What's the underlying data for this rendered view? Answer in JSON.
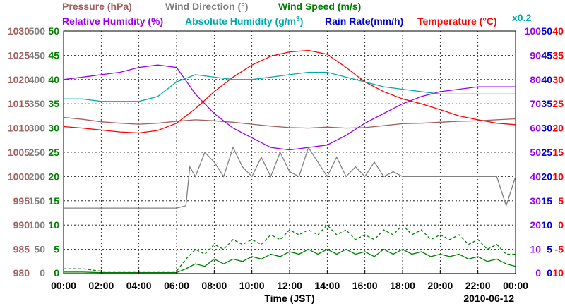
{
  "chart_data": {
    "type": "line",
    "date": "2010-06-12",
    "xlabel": "Time (JST)",
    "x_ticks": [
      "00:00",
      "02:00",
      "04:00",
      "06:00",
      "08:00",
      "10:00",
      "12:00",
      "14:00",
      "16:00",
      "18:00",
      "20:00",
      "22:00",
      "00:00"
    ],
    "grid": true,
    "legend": [
      {
        "text": "Pressure (hPa)",
        "color": "#a0605f"
      },
      {
        "text": "Wind Direction (°)",
        "color": "#808080"
      },
      {
        "text": "Wind Speed (m/s)",
        "color": "#008000"
      },
      {
        "text": "Relative Humidity (%)",
        "color": "#9900ee"
      },
      {
        "text": "Absolute Humidity (g/m",
        "sup": "3",
        "tail": ")",
        "color": "#00aaaa"
      },
      {
        "text": "Rain Rate(mm/h)",
        "color": "#0000cc"
      },
      {
        "text": "Temperature (°C)",
        "color": "#ff0000"
      },
      {
        "text": "x0.2",
        "color": "#00aaaa"
      }
    ],
    "axes": [
      {
        "name": "Pressure (hPa)",
        "color": "#a0605f",
        "ticks": [
          "1030",
          "1025",
          "1020",
          "1015",
          "1010",
          "1005",
          "1000",
          "995",
          "990",
          "985",
          "980"
        ]
      },
      {
        "name": "Wind Direction (°)",
        "color": "#808080",
        "ticks": [
          "500",
          "450",
          "400",
          "350",
          "300",
          "250",
          "200",
          "150",
          "100",
          "50",
          "0"
        ]
      },
      {
        "name": "Wind Speed (m/s)",
        "color": "#008000",
        "ticks": [
          "50",
          "45",
          "40",
          "35",
          "30",
          "25",
          "20",
          "15",
          "10",
          "5",
          "0"
        ]
      },
      {
        "name": "Relative Humidity (%)",
        "color": "#9900ee",
        "ticks": [
          "100",
          "90",
          "80",
          "70",
          "60",
          "50",
          "40",
          "30",
          "20",
          "10",
          "0"
        ]
      },
      {
        "name": "Rain Rate(mm/h)",
        "color": "#0000cc",
        "ticks": [
          "50",
          "45",
          "40",
          "35",
          "30",
          "25",
          "20",
          "15",
          "10",
          "5",
          "0"
        ]
      },
      {
        "name": "Temperature (°C)",
        "color": "#ff0000",
        "ticks": [
          "40",
          "35",
          "30",
          "25",
          "20",
          "15",
          "10",
          "5",
          "0",
          "-5",
          "-10"
        ]
      }
    ],
    "series": [
      {
        "name": "Pressure (hPa)",
        "color": "#a0605f",
        "ylim": [
          980,
          1030
        ],
        "x": [
          0,
          1,
          2,
          3,
          4,
          5,
          6,
          7,
          8,
          9,
          10,
          11,
          12,
          13,
          14,
          15,
          16,
          17,
          18,
          19,
          20,
          21,
          22,
          23,
          24
        ],
        "y": [
          1012.2,
          1011.8,
          1011.3,
          1011.0,
          1010.8,
          1011.0,
          1011.4,
          1011.7,
          1011.5,
          1011.2,
          1010.8,
          1010.4,
          1010.1,
          1010.0,
          1010.2,
          1010.0,
          1010.1,
          1010.5,
          1010.9,
          1011.0,
          1011.2,
          1011.4,
          1011.5,
          1011.7,
          1011.9
        ]
      },
      {
        "name": "Temperature (°C)",
        "color": "#ff0000",
        "ylim": [
          -10,
          40
        ],
        "x": [
          0,
          1,
          2,
          3,
          4,
          5,
          6,
          7,
          8,
          9,
          10,
          11,
          12,
          13,
          14,
          15,
          16,
          17,
          18,
          19,
          20,
          21,
          22,
          23,
          24
        ],
        "y": [
          20.3,
          20.0,
          19.6,
          19.2,
          19.0,
          19.5,
          21.0,
          24.0,
          27.5,
          30.5,
          33.0,
          34.8,
          35.7,
          36.0,
          35.2,
          32.5,
          29.5,
          27.5,
          26.0,
          25.0,
          23.8,
          22.5,
          21.7,
          21.0,
          20.7
        ]
      },
      {
        "name": "Relative Humidity (%)",
        "color": "#9900ee",
        "ylim": [
          0,
          100
        ],
        "x": [
          0,
          1,
          2,
          3,
          4,
          5,
          6,
          7,
          8,
          9,
          10,
          11,
          12,
          13,
          14,
          15,
          16,
          17,
          18,
          19,
          20,
          21,
          22,
          23,
          24
        ],
        "y": [
          80,
          81,
          82,
          83,
          85,
          86,
          85,
          74,
          66,
          60,
          56,
          52,
          51,
          52,
          53,
          57,
          62,
          66,
          70,
          73,
          75,
          76,
          77,
          77,
          77
        ]
      },
      {
        "name": "Absolute Humidity (g/m3)",
        "color": "#00aaaa",
        "ylim": [
          0,
          100
        ],
        "x": [
          0,
          1,
          2,
          3,
          4,
          5,
          6,
          7,
          8,
          9,
          10,
          11,
          12,
          13,
          14,
          15,
          16,
          17,
          18,
          19,
          20,
          21,
          22,
          23,
          24
        ],
        "y": [
          72,
          72,
          71,
          71,
          71,
          73,
          79,
          82,
          81,
          80,
          80,
          81,
          82,
          83,
          83,
          81,
          79,
          77,
          76,
          75,
          74,
          74,
          74,
          74,
          74
        ]
      },
      {
        "name": "Wind Direction (°)",
        "color": "#808080",
        "ylim": [
          0,
          500
        ],
        "x": [
          0,
          1,
          2,
          3,
          4,
          5,
          6,
          6.5,
          6.7,
          7,
          7.5,
          8,
          8.5,
          9,
          9.5,
          10,
          10.5,
          11,
          11.5,
          12,
          12.5,
          13,
          13.5,
          14,
          14.5,
          15,
          15.5,
          16,
          16.5,
          17,
          17.5,
          18,
          19,
          20,
          21,
          22,
          22.5,
          23,
          23.5,
          24
        ],
        "y": [
          135,
          135,
          135,
          135,
          135,
          135,
          135,
          140,
          220,
          200,
          250,
          230,
          200,
          260,
          220,
          200,
          240,
          200,
          250,
          210,
          200,
          260,
          230,
          200,
          240,
          200,
          220,
          200,
          230,
          200,
          210,
          200,
          200,
          200,
          200,
          200,
          200,
          200,
          140,
          200
        ]
      },
      {
        "name": "Wind Speed max (m/s)",
        "color": "#008000",
        "ylim": [
          0,
          50
        ],
        "style": "dashed",
        "x": [
          0,
          1,
          2,
          3,
          4,
          5,
          6,
          6.5,
          7,
          7.5,
          8,
          8.5,
          9,
          9.5,
          10,
          10.5,
          11,
          11.5,
          12,
          12.5,
          13,
          13.5,
          14,
          14.5,
          15,
          15.5,
          16,
          16.5,
          17,
          17.5,
          18,
          18.5,
          19,
          19.5,
          20,
          20.5,
          21,
          21.5,
          22,
          22.5,
          23,
          23.5,
          24
        ],
        "y": [
          1,
          1,
          0.5,
          0.5,
          0.5,
          0.5,
          0.5,
          3,
          5,
          4,
          6,
          5,
          7,
          6,
          7,
          6,
          8,
          7,
          9,
          8,
          9,
          8,
          10,
          8,
          9,
          7,
          8,
          7,
          9,
          8,
          10,
          8,
          9,
          7,
          8,
          7,
          8,
          6,
          7,
          5,
          6,
          4,
          4
        ]
      },
      {
        "name": "Wind Speed avg (m/s)",
        "color": "#008000",
        "ylim": [
          0,
          50
        ],
        "x": [
          0,
          1,
          2,
          3,
          4,
          5,
          6,
          6.5,
          7,
          7.5,
          8,
          8.5,
          9,
          9.5,
          10,
          10.5,
          11,
          11.5,
          12,
          12.5,
          13,
          13.5,
          14,
          14.5,
          15,
          15.5,
          16,
          16.5,
          17,
          17.5,
          18,
          18.5,
          19,
          19.5,
          20,
          20.5,
          21,
          21.5,
          22,
          22.5,
          23,
          23.5,
          24
        ],
        "y": [
          0.3,
          0.3,
          0.2,
          0.2,
          0.2,
          0.2,
          0.2,
          1,
          2,
          1.5,
          3,
          2,
          3,
          2.5,
          3.5,
          3,
          4,
          3.5,
          4.5,
          4,
          5,
          4,
          5,
          4,
          5,
          4,
          4.5,
          3.5,
          5,
          4,
          5,
          4,
          4.5,
          3.5,
          4,
          3.5,
          4,
          3,
          3.5,
          2.5,
          3,
          2,
          1.5
        ]
      },
      {
        "name": "Rain Rate(mm/h)",
        "color": "#0000cc",
        "ylim": [
          0,
          50
        ],
        "x": [
          0,
          24
        ],
        "y": [
          0,
          0
        ]
      }
    ]
  }
}
